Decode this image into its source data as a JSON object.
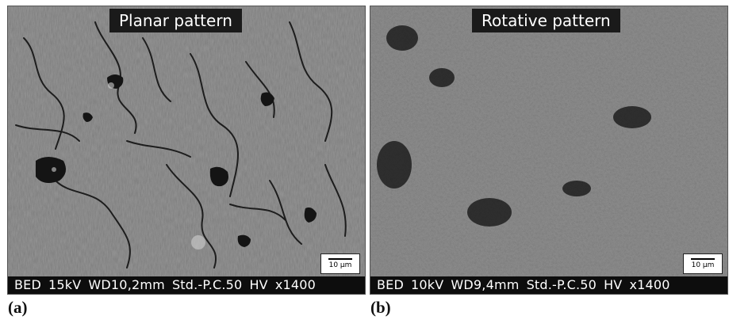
{
  "panels": [
    {
      "title": "Planar pattern",
      "scale_label": "10 µm",
      "info": {
        "mode": "BED",
        "voltage": "15kV",
        "working_distance": "WD10,2mm",
        "probe": "Std.-P.C.50",
        "vacuum": "HV",
        "magnification": "x1400"
      },
      "caption": "(a)"
    },
    {
      "title": "Rotative pattern",
      "scale_label": "10 µm",
      "info": {
        "mode": "BED",
        "voltage": "10kV",
        "working_distance": "WD9,4mm",
        "probe": "Std.-P.C.50",
        "vacuum": "HV",
        "magnification": "x1400"
      },
      "caption": "(b)"
    }
  ],
  "colors": {
    "background_gray": "#6f6f6f",
    "label_background": "#1a1a1a",
    "info_bar_background": "#0d0d0d",
    "label_text": "#ffffff"
  }
}
